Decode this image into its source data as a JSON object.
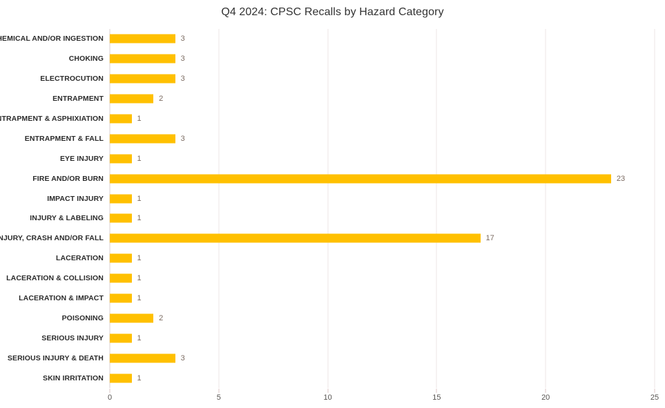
{
  "chart_data": {
    "type": "bar",
    "orientation": "horizontal",
    "title": "Q4 2024: CPSC Recalls by Hazard Category",
    "categories": [
      "CHEMICAL AND/OR INGESTION",
      "CHOKING",
      "ELECTROCUTION",
      "ENTRAPMENT",
      "ENTRAPMENT & ASPHIXIATION",
      "ENTRAPMENT & FALL",
      "EYE INJURY",
      "FIRE AND/OR BURN",
      "IMPACT INJURY",
      "INJURY & LABELING",
      "INJURY, CRASH AND/OR FALL",
      "LACERATION",
      "LACERATION & COLLISION",
      "LACERATION & IMPACT",
      "POISONING",
      "SERIOUS INJURY",
      "SERIOUS INJURY & DEATH",
      "SKIN IRRITATION"
    ],
    "values": [
      3,
      3,
      3,
      2,
      1,
      3,
      1,
      23,
      1,
      1,
      17,
      1,
      1,
      1,
      2,
      1,
      3,
      1
    ],
    "xlabel": "",
    "ylabel": "",
    "xlim": [
      0,
      25
    ],
    "x_ticks": [
      0,
      5,
      10,
      15,
      20,
      25
    ],
    "grid": true,
    "legend": false,
    "data_labels": true,
    "colors": {
      "bar": "#FFC000",
      "gridline": "#ece4e4",
      "zero_line": "#ddd2d2",
      "tick_mark": "#dcc6c6",
      "value_label": "#7a6a60",
      "category_label": "#2b2b2b",
      "axis_label": "#565350",
      "title": "#323232",
      "background": "#ffffff"
    }
  }
}
